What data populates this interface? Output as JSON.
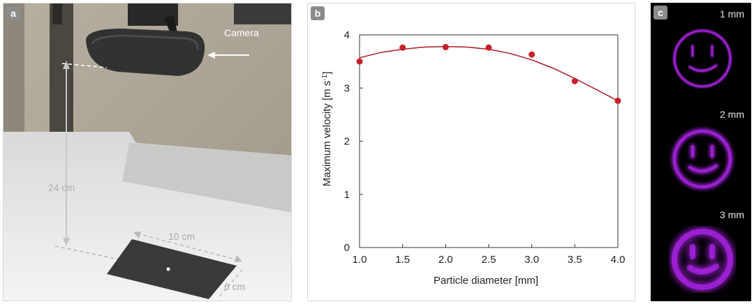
{
  "panels": {
    "a": {
      "letter": "a",
      "labels": {
        "camera": "Camera",
        "height": "24 cm",
        "width": "10 cm",
        "depth": "6 cm"
      }
    },
    "b": {
      "letter": "b"
    },
    "c": {
      "letter": "c",
      "tiles": [
        {
          "label": "1 mm",
          "stroke": 4,
          "glow": 1
        },
        {
          "label": "2 mm",
          "stroke": 7,
          "glow": 3
        },
        {
          "label": "3 mm",
          "stroke": 11,
          "glow": 5
        }
      ]
    }
  },
  "colors": {
    "marker": "#c8202a",
    "fit_line": "#b01a24",
    "pattern": "#a020d8",
    "axis": "#333333"
  },
  "chart_data": {
    "type": "scatter",
    "title": "",
    "xlabel": "Particle diameter [mm]",
    "ylabel": "Maximum velocity [m s",
    "ylabel_sup": "-1",
    "ylabel_end": "]",
    "xlim": [
      1.0,
      4.0
    ],
    "ylim": [
      0,
      4
    ],
    "xticks": [
      1.0,
      1.5,
      2.0,
      2.5,
      3.0,
      3.5,
      4.0
    ],
    "xtick_labels": [
      "1.0",
      "1.5",
      "2.0",
      "2.5",
      "3.0",
      "3.5",
      "4.0"
    ],
    "yticks": [
      0,
      1,
      2,
      3,
      4
    ],
    "ytick_labels": [
      "0",
      "1",
      "2",
      "3",
      "4"
    ],
    "grid": false,
    "series": [
      {
        "type": "scatter",
        "x": [
          1.0,
          1.5,
          2.0,
          2.5,
          3.0,
          3.5,
          4.0
        ],
        "y": [
          3.5,
          3.76,
          3.77,
          3.76,
          3.63,
          3.13,
          2.76
        ]
      },
      {
        "type": "line",
        "x": [
          1.0,
          1.25,
          1.5,
          1.75,
          2.0,
          2.25,
          2.5,
          2.75,
          3.0,
          3.25,
          3.5,
          3.75,
          4.0
        ],
        "y": [
          3.57,
          3.67,
          3.73,
          3.77,
          3.78,
          3.77,
          3.73,
          3.65,
          3.53,
          3.37,
          3.18,
          2.97,
          2.76
        ]
      }
    ]
  }
}
